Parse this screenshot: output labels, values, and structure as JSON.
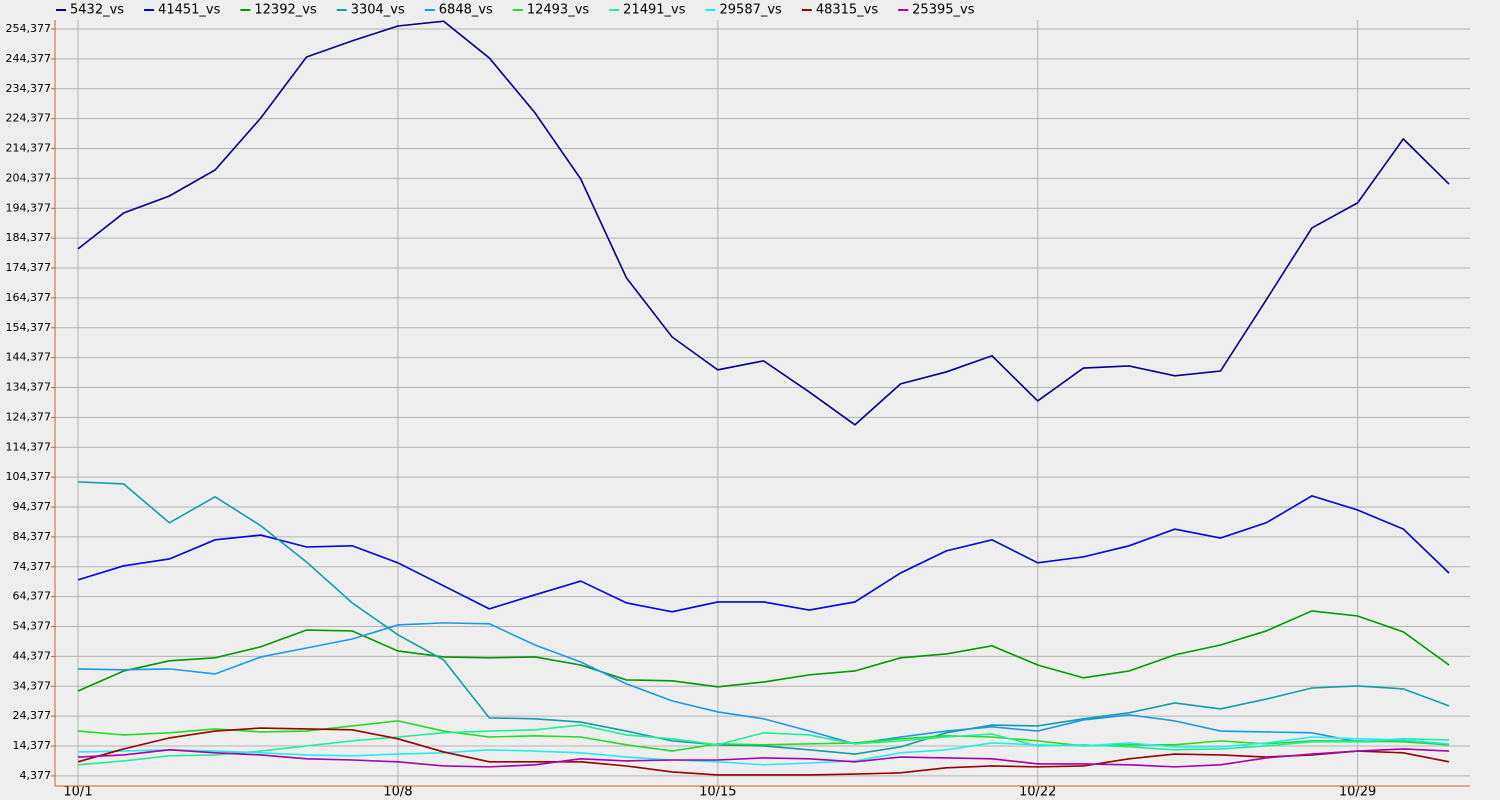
{
  "chart_data": {
    "type": "line",
    "categories": [
      "10/1",
      null,
      null,
      null,
      null,
      null,
      null,
      "10/8",
      null,
      null,
      null,
      null,
      null,
      null,
      "10/15",
      null,
      null,
      null,
      null,
      null,
      null,
      "10/22",
      null,
      null,
      null,
      null,
      null,
      null,
      "10/29",
      null,
      null
    ],
    "ylim": [
      1000,
      257400
    ],
    "yticks": [
      {
        "value": 4377,
        "label": "4,377"
      },
      {
        "value": 14377,
        "label": "14,377"
      },
      {
        "value": 24377,
        "label": "24,377"
      },
      {
        "value": 34377,
        "label": "34,377"
      },
      {
        "value": 44377,
        "label": "44,377"
      },
      {
        "value": 54377,
        "label": "54,377"
      },
      {
        "value": 64377,
        "label": "64,377"
      },
      {
        "value": 74377,
        "label": "74,377"
      },
      {
        "value": 84377,
        "label": "84,377"
      },
      {
        "value": 94377,
        "label": "94,377"
      },
      {
        "value": 104377,
        "label": "104,377"
      },
      {
        "value": 114377,
        "label": "114,377"
      },
      {
        "value": 124377,
        "label": "124,377"
      },
      {
        "value": 134377,
        "label": "134,377"
      },
      {
        "value": 144377,
        "label": "144,377"
      },
      {
        "value": 154377,
        "label": "154,377"
      },
      {
        "value": 164377,
        "label": "164,377"
      },
      {
        "value": 174377,
        "label": "174,377"
      },
      {
        "value": 184377,
        "label": "184,377"
      },
      {
        "value": 194377,
        "label": "194,377"
      },
      {
        "value": 204377,
        "label": "204,377"
      },
      {
        "value": 214377,
        "label": "214,377"
      },
      {
        "value": 224377,
        "label": "224,377"
      },
      {
        "value": 234377,
        "label": "234,377"
      },
      {
        "value": 244377,
        "label": "244,377"
      },
      {
        "value": 254377,
        "label": "254,377"
      }
    ],
    "grid": true,
    "legend": "top",
    "series": [
      {
        "name": "5432_vs",
        "color": "#00008b",
        "values": [
          180800,
          192800,
          198500,
          207200,
          224600,
          245000,
          250400,
          255400,
          257000,
          244700,
          226300,
          204200,
          171100,
          151300,
          140300,
          143300,
          132900,
          121900,
          135600,
          139600,
          145000,
          129900,
          140900,
          141600,
          138300,
          139900,
          163700,
          187800,
          196200,
          217600,
          202500
        ]
      },
      {
        "name": "41451_vs",
        "color": "#0000dd",
        "values": [
          70000,
          74700,
          77000,
          83400,
          85000,
          81000,
          81400,
          75700,
          68000,
          60300,
          65000,
          69600,
          62300,
          59300,
          62600,
          62600,
          59900,
          62600,
          72300,
          79700,
          83400,
          75700,
          77700,
          81400,
          87000,
          84000,
          89100,
          98100,
          93400,
          87000,
          72300
        ]
      },
      {
        "name": "12392_vs",
        "color": "#009900",
        "values": [
          32800,
          39500,
          42900,
          43900,
          47600,
          53200,
          52900,
          46200,
          44200,
          43900,
          44200,
          41500,
          36500,
          36200,
          34200,
          35800,
          38200,
          39500,
          43900,
          45200,
          47900,
          41500,
          37200,
          39500,
          44900,
          48200,
          52900,
          59600,
          57900,
          52600,
          41500
        ]
      },
      {
        "name": "3304_vs",
        "color": "#0f9fa8",
        "values": [
          102800,
          102100,
          89100,
          97800,
          88100,
          76000,
          62300,
          51600,
          43200,
          23800,
          23500,
          22400,
          19400,
          16100,
          14800,
          14400,
          13100,
          11700,
          14100,
          18800,
          21400,
          21100,
          23500,
          25500,
          28800,
          26800,
          30100,
          33800,
          34500,
          33500,
          27800
        ]
      },
      {
        "name": "6848_vs",
        "color": "#1a9ae6",
        "values": [
          40200,
          39900,
          40200,
          38500,
          44200,
          47200,
          50200,
          54900,
          55600,
          55300,
          48200,
          42500,
          35200,
          29500,
          25800,
          23500,
          19400,
          15100,
          17400,
          19400,
          20800,
          19400,
          23100,
          24800,
          22800,
          19400,
          19100,
          18800,
          15800,
          16100,
          14800
        ]
      },
      {
        "name": "12493_vs",
        "color": "#22dd22",
        "values": [
          19400,
          18100,
          18800,
          20100,
          19100,
          19400,
          21100,
          22800,
          19400,
          17400,
          17800,
          17400,
          14800,
          12700,
          15100,
          14800,
          15100,
          15400,
          16800,
          17800,
          17400,
          16100,
          14400,
          14800,
          14800,
          16100,
          15100,
          16100,
          16100,
          15800,
          14800
        ]
      },
      {
        "name": "21491_vs",
        "color": "#22ee99",
        "values": [
          8100,
          9400,
          11100,
          11400,
          12700,
          14400,
          16100,
          17400,
          18800,
          19400,
          19800,
          21400,
          18100,
          16800,
          14800,
          18800,
          18100,
          15100,
          16100,
          17400,
          18400,
          14400,
          14800,
          14100,
          13100,
          13400,
          14400,
          15800,
          15800,
          16800,
          16400
        ]
      },
      {
        "name": "29587_vs",
        "color": "#22eeee",
        "values": [
          12400,
          12700,
          13100,
          12700,
          12100,
          11400,
          11100,
          11700,
          12100,
          13100,
          12700,
          12100,
          10700,
          9700,
          9100,
          8100,
          8700,
          9400,
          12100,
          13100,
          15400,
          14800,
          14400,
          15400,
          14100,
          14100,
          15400,
          17400,
          16800,
          16400,
          15100
        ]
      },
      {
        "name": "48315_vs",
        "color": "#990000",
        "values": [
          9100,
          13400,
          17100,
          19400,
          20400,
          20100,
          19800,
          16800,
          12400,
          9100,
          9100,
          9100,
          7700,
          5700,
          4700,
          4700,
          4700,
          5000,
          5400,
          7100,
          7700,
          7400,
          7700,
          10100,
          11700,
          11400,
          10700,
          11400,
          12700,
          12100,
          9100
        ]
      },
      {
        "name": "25395_vs",
        "color": "#aa00aa",
        "values": [
          10700,
          11400,
          13100,
          12100,
          11400,
          10100,
          9700,
          9100,
          7700,
          7400,
          8100,
          10100,
          9400,
          9700,
          9700,
          10400,
          10100,
          9100,
          10700,
          10400,
          10100,
          8400,
          8400,
          8100,
          7400,
          8100,
          10400,
          11700,
          12700,
          13400,
          12700
        ]
      }
    ]
  }
}
